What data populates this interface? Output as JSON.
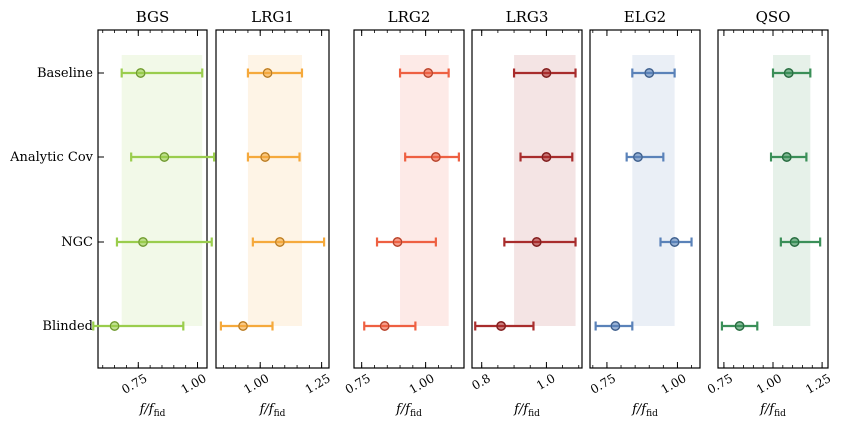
{
  "chart_data": {
    "type": "scatter",
    "description_of_marks": "points with horizontal error bars; shaded band marks the baseline 1-sigma interval",
    "rows": [
      "Baseline",
      "Analytic Cov",
      "NGC",
      "Blinded"
    ],
    "xlabel_main": "f/f",
    "xlabel_sub": "fid",
    "panels": [
      {
        "title": "BGS",
        "color": "#9acd4d",
        "xlim": [
          0.58,
          1.04
        ],
        "ticks": [
          0.75,
          1.0
        ],
        "tick_labels": [
          "0.75",
          "1.00"
        ],
        "band": [
          0.68,
          1.02
        ],
        "points": [
          {
            "row": "Baseline",
            "value": 0.76,
            "err": [
              0.68,
              1.02
            ]
          },
          {
            "row": "Analytic Cov",
            "value": 0.86,
            "err": [
              0.72,
              1.07
            ]
          },
          {
            "row": "NGC",
            "value": 0.77,
            "err": [
              0.66,
              1.06
            ]
          },
          {
            "row": "Blinded",
            "value": 0.65,
            "err": [
              0.56,
              0.94
            ]
          }
        ]
      },
      {
        "title": "LRG1",
        "color": "#f5a93c",
        "xlim": [
          0.82,
          1.28
        ],
        "ticks": [
          1.0,
          1.25
        ],
        "tick_labels": [
          "1.00",
          "1.25"
        ],
        "band": [
          0.95,
          1.17
        ],
        "points": [
          {
            "row": "Baseline",
            "value": 1.03,
            "err": [
              0.95,
              1.17
            ]
          },
          {
            "row": "Analytic Cov",
            "value": 1.02,
            "err": [
              0.95,
              1.16
            ]
          },
          {
            "row": "NGC",
            "value": 1.08,
            "err": [
              0.97,
              1.26
            ]
          },
          {
            "row": "Blinded",
            "value": 0.93,
            "err": [
              0.84,
              1.05
            ]
          }
        ]
      },
      {
        "title": "LRG2",
        "color": "#ee6042",
        "xlim": [
          0.72,
          1.15
        ],
        "ticks": [
          0.75,
          1.0
        ],
        "tick_labels": [
          "0.75",
          "1.00"
        ],
        "band": [
          0.9,
          1.09
        ],
        "points": [
          {
            "row": "Baseline",
            "value": 1.01,
            "err": [
              0.9,
              1.09
            ]
          },
          {
            "row": "Analytic Cov",
            "value": 1.04,
            "err": [
              0.92,
              1.13
            ]
          },
          {
            "row": "NGC",
            "value": 0.89,
            "err": [
              0.81,
              1.04
            ]
          },
          {
            "row": "Blinded",
            "value": 0.84,
            "err": [
              0.76,
              0.96
            ]
          }
        ]
      },
      {
        "title": "LRG3",
        "color": "#a82c2c",
        "xlim": [
          0.77,
          1.11
        ],
        "ticks": [
          0.8,
          1.0
        ],
        "tick_labels": [
          "0.8",
          "1.0"
        ],
        "band": [
          0.9,
          1.09
        ],
        "points": [
          {
            "row": "Baseline",
            "value": 1.0,
            "err": [
              0.9,
              1.09
            ]
          },
          {
            "row": "Analytic Cov",
            "value": 1.0,
            "err": [
              0.92,
              1.08
            ]
          },
          {
            "row": "NGC",
            "value": 0.97,
            "err": [
              0.87,
              1.09
            ]
          },
          {
            "row": "Blinded",
            "value": 0.86,
            "err": [
              0.78,
              0.96
            ]
          }
        ]
      },
      {
        "title": "ELG2",
        "color": "#5a82b9",
        "xlim": [
          0.69,
          1.08
        ],
        "ticks": [
          0.75,
          1.0
        ],
        "tick_labels": [
          "0.75",
          "1.00"
        ],
        "band": [
          0.84,
          0.99
        ],
        "points": [
          {
            "row": "Baseline",
            "value": 0.9,
            "err": [
              0.84,
              0.99
            ]
          },
          {
            "row": "Analytic Cov",
            "value": 0.86,
            "err": [
              0.82,
              0.95
            ]
          },
          {
            "row": "NGC",
            "value": 0.99,
            "err": [
              0.94,
              1.05
            ]
          },
          {
            "row": "Blinded",
            "value": 0.78,
            "err": [
              0.71,
              0.84
            ]
          }
        ]
      },
      {
        "title": "QSO",
        "color": "#3a8f58",
        "xlim": [
          0.72,
          1.28
        ],
        "ticks": [
          0.75,
          1.0,
          1.25
        ],
        "tick_labels": [
          "0.75",
          "1.00",
          "1.25"
        ],
        "band": [
          1.0,
          1.19
        ],
        "points": [
          {
            "row": "Baseline",
            "value": 1.08,
            "err": [
              1.0,
              1.19
            ]
          },
          {
            "row": "Analytic Cov",
            "value": 1.07,
            "err": [
              0.99,
              1.17
            ]
          },
          {
            "row": "NGC",
            "value": 1.11,
            "err": [
              1.04,
              1.24
            ]
          },
          {
            "row": "Blinded",
            "value": 0.83,
            "err": [
              0.74,
              0.92
            ]
          }
        ]
      }
    ]
  }
}
